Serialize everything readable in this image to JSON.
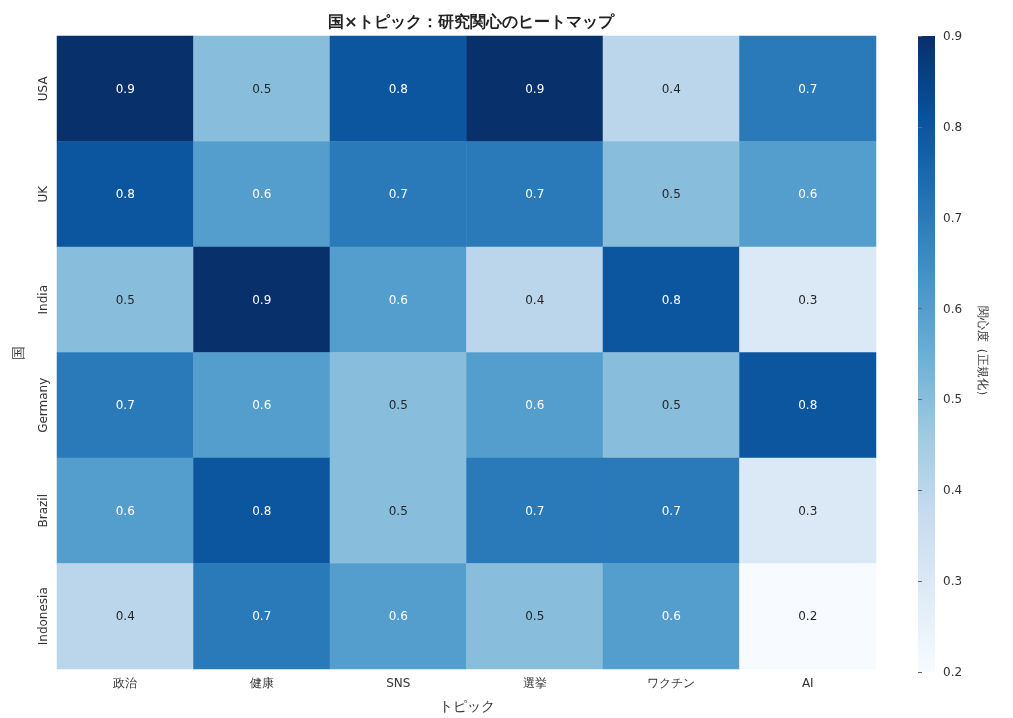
{
  "chart_data": {
    "type": "heatmap",
    "title": "国×トピック：研究関心のヒートマップ",
    "xlabel": "トピック",
    "ylabel": "国",
    "clabel": "関心度（正規化）",
    "categories": [
      "政治",
      "健康",
      "SNS",
      "選挙",
      "ワクチン",
      "AI"
    ],
    "y_categories": [
      "USA",
      "UK",
      "India",
      "Germany",
      "Brazil",
      "Indonesia"
    ],
    "cells": [
      [
        0.9,
        0.5,
        0.8,
        0.9,
        0.4,
        0.7
      ],
      [
        0.8,
        0.6,
        0.7,
        0.7,
        0.5,
        0.6
      ],
      [
        0.5,
        0.9,
        0.6,
        0.4,
        0.8,
        0.3
      ],
      [
        0.7,
        0.6,
        0.5,
        0.6,
        0.5,
        0.8
      ],
      [
        0.6,
        0.8,
        0.5,
        0.7,
        0.7,
        0.3
      ],
      [
        0.4,
        0.7,
        0.6,
        0.5,
        0.6,
        0.2
      ]
    ],
    "clim": [
      0.2,
      0.9
    ],
    "cticks": [
      0.2,
      0.3,
      0.4,
      0.5,
      0.6,
      0.7,
      0.8,
      0.9
    ],
    "data_labels": true
  }
}
